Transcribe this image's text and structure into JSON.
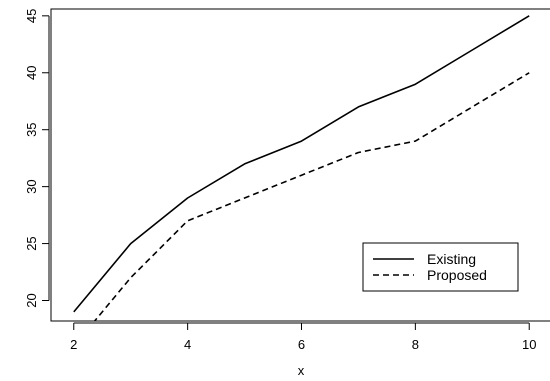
{
  "chart_data": {
    "type": "line",
    "title": "",
    "xlabel": "x",
    "ylabel": "",
    "xlim": [
      1.6,
      10.4
    ],
    "ylim": [
      18.2,
      45.6
    ],
    "xticks": [
      2,
      4,
      6,
      8,
      10
    ],
    "yticks": [
      20,
      25,
      30,
      35,
      40,
      45
    ],
    "grid": false,
    "legend_position": "bottom-right",
    "x": [
      2,
      3,
      4,
      5,
      6,
      7,
      8,
      9,
      10
    ],
    "series": [
      {
        "name": "Existing",
        "line_style": "solid",
        "color": "#000000",
        "values": [
          19,
          25,
          29,
          32,
          34,
          37,
          39,
          42,
          45
        ]
      },
      {
        "name": "Proposed",
        "line_style": "dashed",
        "color": "#000000",
        "values": [
          16,
          22,
          27,
          29,
          31,
          33,
          34,
          37,
          40
        ]
      }
    ]
  }
}
